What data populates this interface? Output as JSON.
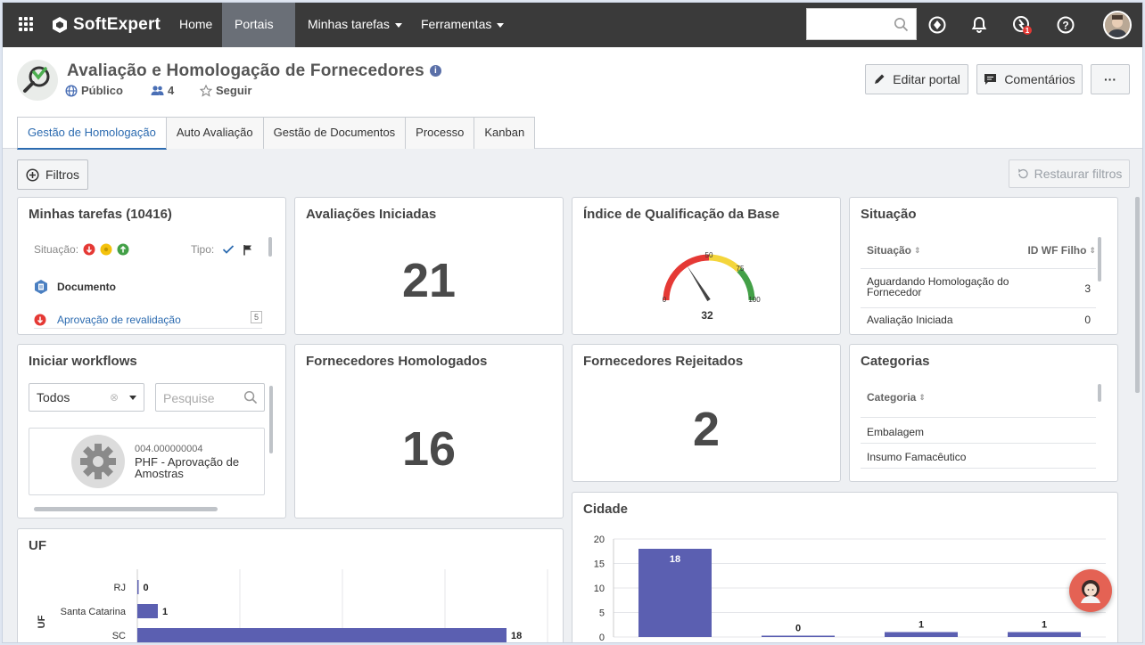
{
  "topbar": {
    "brand": "SoftExpert",
    "nav": [
      {
        "label": "Home"
      },
      {
        "label": "Portais"
      },
      {
        "label": "Minhas tarefas"
      },
      {
        "label": "Ferramentas"
      }
    ],
    "search_placeholder": "",
    "alert_badge": "1"
  },
  "portal": {
    "title": "Avaliação e Homologação de Fornecedores",
    "visibility": "Público",
    "members": "4",
    "follow": "Seguir",
    "edit_label": "Editar portal",
    "comments_label": "Comentários",
    "more_label": "···"
  },
  "tabs": [
    "Gestão de Homologação",
    "Auto Avaliação",
    "Gestão de Documentos",
    "Processo",
    "Kanban"
  ],
  "toolbar": {
    "filters_label": "Filtros",
    "restore_label": "Restaurar filtros"
  },
  "tasks": {
    "title": "Minhas tarefas (10416)",
    "situacao_label": "Situação:",
    "tipo_label": "Tipo:",
    "group_label": "Documento",
    "item_label": "Aprovação de revalidação",
    "item_count": "5"
  },
  "avaliacoes": {
    "title": "Avaliações Iniciadas",
    "value": "21"
  },
  "indice": {
    "title": "Índice de Qualificação da Base",
    "value": "32",
    "ticks": {
      "t0": "0",
      "t50": "50",
      "t75": "75",
      "t100": "100"
    },
    "gauge_value": 32
  },
  "situacao": {
    "title": "Situação",
    "col1": "Situação",
    "col2": "ID WF Filho",
    "rows": [
      {
        "name_l1": "Aguardando Homologação do",
        "name_l2": "Fornecedor",
        "value": "3"
      },
      {
        "name": "Avaliação Iniciada",
        "value": "0"
      }
    ]
  },
  "workflows": {
    "title": "Iniciar workflows",
    "select_value": "Todos",
    "search_placeholder": "Pesquise",
    "item_code": "004.000000004",
    "item_name_l1": "PHF - Aprovação de",
    "item_name_l2": "Amostras"
  },
  "homologados": {
    "title": "Fornecedores Homologados",
    "value": "16"
  },
  "rejeitados": {
    "title": "Fornecedores Rejeitados",
    "value": "2"
  },
  "categorias": {
    "title": "Categorias",
    "col": "Categoria",
    "rows": [
      "Embalagem",
      "Insumo Famacêutico"
    ]
  },
  "cidade": {
    "title": "Cidade"
  },
  "uf": {
    "title": "UF",
    "axis_label": "UF"
  },
  "chart_data": [
    {
      "type": "bar",
      "title": "Cidade",
      "categories": [
        "",
        "",
        "",
        ""
      ],
      "values": [
        18,
        0,
        1,
        1
      ],
      "ylim": [
        0,
        20
      ],
      "yticks": [
        0,
        5,
        10,
        15,
        20
      ],
      "color": "#5b5fb1"
    },
    {
      "type": "bar",
      "orientation": "horizontal",
      "title": "UF",
      "ylabel": "UF",
      "categories": [
        "RJ",
        "Santa Catarina",
        "SC"
      ],
      "values": [
        0,
        1,
        18
      ],
      "color": "#5b5fb1"
    }
  ]
}
